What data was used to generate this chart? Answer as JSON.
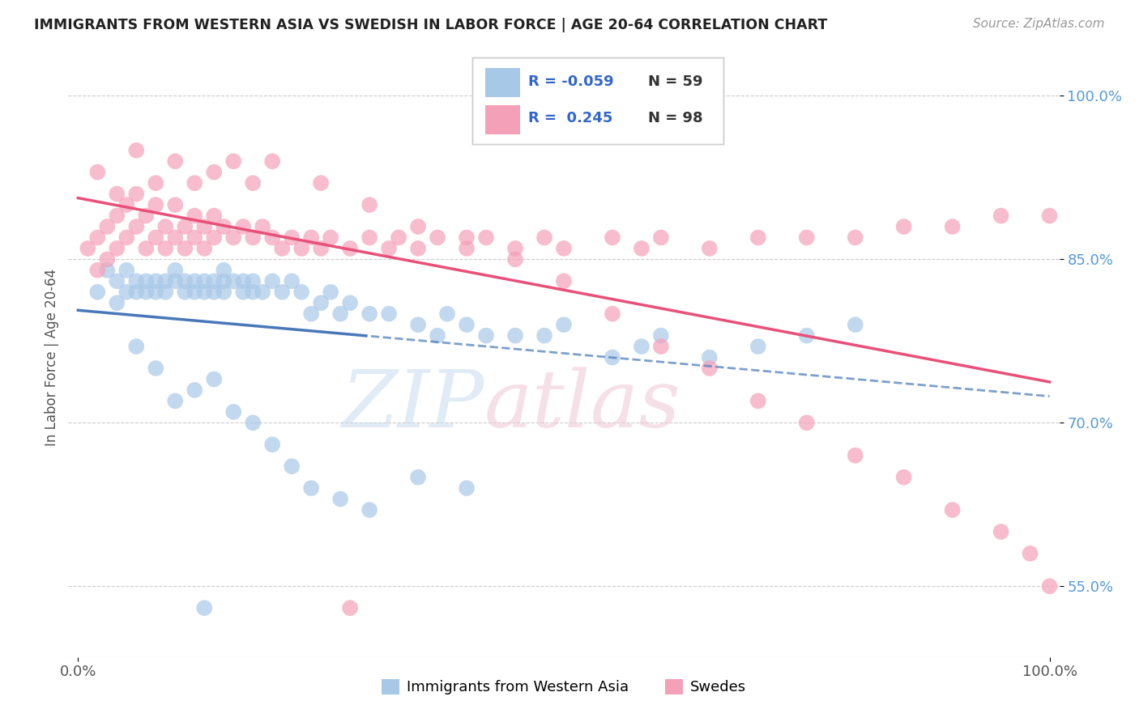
{
  "title": "IMMIGRANTS FROM WESTERN ASIA VS SWEDISH IN LABOR FORCE | AGE 20-64 CORRELATION CHART",
  "source_text": "Source: ZipAtlas.com",
  "ylabel": "In Labor Force | Age 20-64",
  "xlim": [
    -0.01,
    1.01
  ],
  "ylim": [
    0.485,
    1.035
  ],
  "yticks": [
    0.55,
    0.7,
    0.85,
    1.0
  ],
  "ytick_labels": [
    "55.0%",
    "70.0%",
    "85.0%",
    "100.0%"
  ],
  "xticks": [
    0.0,
    1.0
  ],
  "xtick_labels": [
    "0.0%",
    "100.0%"
  ],
  "legend_r_blue": "-0.059",
  "legend_n_blue": "59",
  "legend_r_pink": "0.245",
  "legend_n_pink": "98",
  "legend_label_blue": "Immigrants from Western Asia",
  "legend_label_pink": "Swedes",
  "blue_color": "#a8c8e8",
  "pink_color": "#f4a0b8",
  "blue_line_color": "#4878b8",
  "pink_line_color": "#e8507a",
  "blue_line_solid_end": 0.3,
  "blue_x": [
    0.02,
    0.03,
    0.04,
    0.04,
    0.05,
    0.05,
    0.06,
    0.06,
    0.07,
    0.07,
    0.08,
    0.08,
    0.09,
    0.09,
    0.1,
    0.1,
    0.11,
    0.11,
    0.12,
    0.12,
    0.13,
    0.13,
    0.14,
    0.14,
    0.15,
    0.15,
    0.15,
    0.16,
    0.17,
    0.17,
    0.18,
    0.18,
    0.19,
    0.2,
    0.21,
    0.22,
    0.23,
    0.24,
    0.25,
    0.26,
    0.27,
    0.28,
    0.3,
    0.32,
    0.35,
    0.37,
    0.38,
    0.4,
    0.42,
    0.45,
    0.48,
    0.5,
    0.55,
    0.58,
    0.6,
    0.65,
    0.7,
    0.75,
    0.8
  ],
  "blue_y": [
    0.82,
    0.84,
    0.83,
    0.81,
    0.82,
    0.84,
    0.82,
    0.83,
    0.83,
    0.82,
    0.82,
    0.83,
    0.82,
    0.83,
    0.83,
    0.84,
    0.82,
    0.83,
    0.82,
    0.83,
    0.82,
    0.83,
    0.82,
    0.83,
    0.82,
    0.83,
    0.84,
    0.83,
    0.82,
    0.83,
    0.82,
    0.83,
    0.82,
    0.83,
    0.82,
    0.83,
    0.82,
    0.8,
    0.81,
    0.82,
    0.8,
    0.81,
    0.8,
    0.8,
    0.79,
    0.78,
    0.8,
    0.79,
    0.78,
    0.78,
    0.78,
    0.79,
    0.76,
    0.77,
    0.78,
    0.76,
    0.77,
    0.78,
    0.79
  ],
  "blue_y_low": [
    0.77,
    0.75,
    0.72,
    0.73,
    0.74,
    0.71,
    0.7,
    0.68,
    0.66,
    0.64,
    0.63,
    0.62,
    0.65,
    0.64,
    0.53
  ],
  "blue_x_low": [
    0.06,
    0.08,
    0.1,
    0.12,
    0.14,
    0.16,
    0.18,
    0.2,
    0.22,
    0.24,
    0.27,
    0.3,
    0.35,
    0.4,
    0.13
  ],
  "pink_x": [
    0.01,
    0.02,
    0.02,
    0.03,
    0.03,
    0.04,
    0.04,
    0.05,
    0.05,
    0.06,
    0.06,
    0.07,
    0.07,
    0.08,
    0.08,
    0.09,
    0.09,
    0.1,
    0.1,
    0.11,
    0.11,
    0.12,
    0.12,
    0.13,
    0.13,
    0.14,
    0.14,
    0.15,
    0.16,
    0.17,
    0.18,
    0.19,
    0.2,
    0.21,
    0.22,
    0.23,
    0.24,
    0.25,
    0.26,
    0.28,
    0.3,
    0.32,
    0.33,
    0.35,
    0.37,
    0.4,
    0.42,
    0.45,
    0.48,
    0.5,
    0.55,
    0.58,
    0.6,
    0.65,
    0.7,
    0.75,
    0.8,
    0.85,
    0.9,
    0.95,
    1.0
  ],
  "pink_y": [
    0.86,
    0.84,
    0.87,
    0.85,
    0.88,
    0.86,
    0.89,
    0.87,
    0.9,
    0.88,
    0.91,
    0.86,
    0.89,
    0.87,
    0.9,
    0.86,
    0.88,
    0.87,
    0.9,
    0.86,
    0.88,
    0.87,
    0.89,
    0.86,
    0.88,
    0.87,
    0.89,
    0.88,
    0.87,
    0.88,
    0.87,
    0.88,
    0.87,
    0.86,
    0.87,
    0.86,
    0.87,
    0.86,
    0.87,
    0.86,
    0.87,
    0.86,
    0.87,
    0.86,
    0.87,
    0.86,
    0.87,
    0.86,
    0.87,
    0.86,
    0.87,
    0.86,
    0.87,
    0.86,
    0.87,
    0.87,
    0.87,
    0.88,
    0.88,
    0.89,
    0.89
  ],
  "pink_y_low": [
    0.93,
    0.91,
    0.95,
    0.92,
    0.94,
    0.92,
    0.93,
    0.94,
    0.92,
    0.94,
    0.92,
    0.9,
    0.88,
    0.87,
    0.85,
    0.83,
    0.8,
    0.77,
    0.75,
    0.72,
    0.7,
    0.67,
    0.65,
    0.62,
    0.6,
    0.58,
    0.55,
    0.53
  ],
  "pink_x_low": [
    0.02,
    0.04,
    0.06,
    0.08,
    0.1,
    0.12,
    0.14,
    0.16,
    0.18,
    0.2,
    0.25,
    0.3,
    0.35,
    0.4,
    0.45,
    0.5,
    0.55,
    0.6,
    0.65,
    0.7,
    0.75,
    0.8,
    0.85,
    0.9,
    0.95,
    0.98,
    1.0,
    0.28
  ]
}
